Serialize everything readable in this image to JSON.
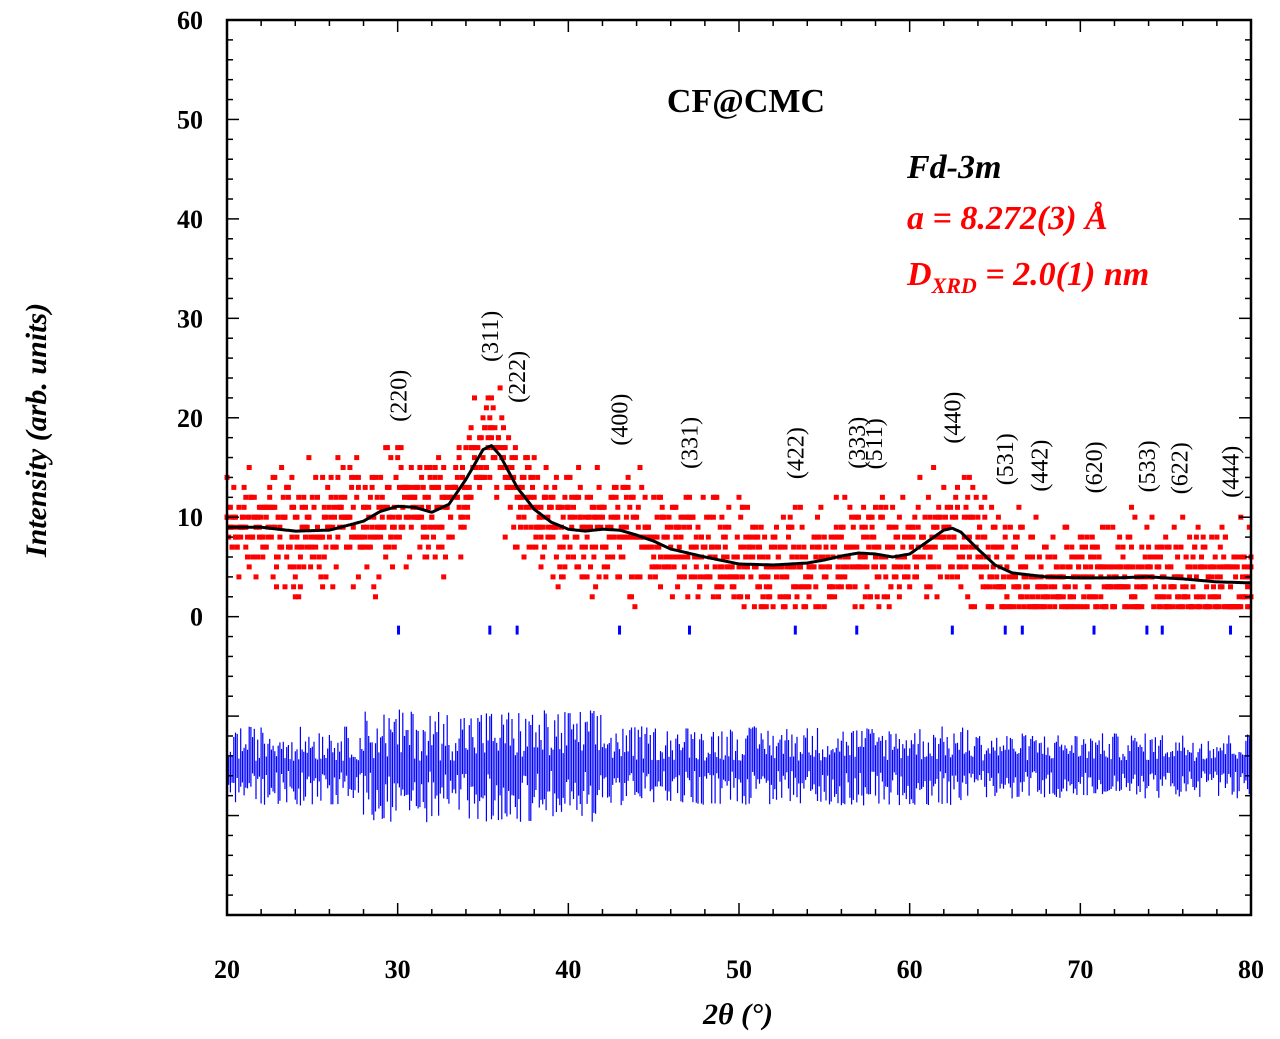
{
  "colors": {
    "observed": "#ff0000",
    "calculated": "#000000",
    "bragg": "#0000ff",
    "difference": "#0000ff",
    "annotation_red": "#ff0000",
    "annotation_black": "#000000"
  },
  "chart_data": {
    "type": "scatter",
    "title": "CF@CMC",
    "xlabel": "2θ (°)",
    "ylabel": "Intensity (arb. units)",
    "xlim": [
      20,
      80
    ],
    "ylim": [
      -30,
      60
    ],
    "x_ticks": [
      "20",
      "30",
      "40",
      "50",
      "60",
      "70",
      "80"
    ],
    "y_ticks": [
      "0",
      "10",
      "20",
      "30",
      "40",
      "50",
      "60"
    ],
    "annotations": {
      "space_group": "Fd-3m",
      "lattice_param": "a = 8.272(3) Å",
      "size_prefix": "D",
      "size_subscript": "XRD",
      "size_value": " = 2.0(1) nm"
    },
    "series": [
      {
        "name": "Observed",
        "style": "square-markers",
        "note": "noisy scattered points following the calculated curve with ±5 spread"
      },
      {
        "name": "Calculated",
        "style": "line",
        "x": [
          20,
          22,
          24,
          26,
          28,
          29,
          30,
          31,
          32,
          33,
          34,
          35,
          35.5,
          36,
          37,
          38,
          39,
          40,
          41,
          42,
          43,
          44,
          45,
          46,
          48,
          50,
          52,
          54,
          55,
          56,
          57,
          58,
          59,
          60,
          61,
          62,
          62.5,
          63,
          64,
          65,
          66,
          68,
          70,
          72,
          74,
          76,
          78,
          80
        ],
        "y": [
          9,
          9,
          8.6,
          8.7,
          9.6,
          10.6,
          11.1,
          11,
          10.5,
          11.3,
          13.8,
          16.8,
          17.2,
          16.2,
          13,
          10.8,
          9.5,
          8.8,
          8.6,
          8.8,
          8.7,
          8.2,
          7.6,
          6.8,
          6,
          5.3,
          5.2,
          5.4,
          5.7,
          6.1,
          6.4,
          6.3,
          6,
          6.3,
          7.5,
          8.7,
          8.9,
          8.5,
          6.8,
          5.2,
          4.4,
          4,
          3.9,
          3.9,
          4,
          3.8,
          3.5,
          3.4
        ]
      },
      {
        "name": "Difference",
        "style": "vertical-lines",
        "baseline": -15,
        "note": "residual noise, amplitude ~±5, larger near 30–40"
      }
    ],
    "bragg_positions": [
      30.05,
      35.4,
      37.0,
      43.0,
      47.1,
      53.3,
      56.9,
      62.5,
      65.6,
      66.6,
      70.8,
      73.9,
      74.8,
      78.8
    ],
    "reflections": [
      {
        "hkl": "(220)",
        "x": 30.05
      },
      {
        "hkl": "(311)",
        "x": 35.4
      },
      {
        "hkl": "(222)",
        "x": 37.0
      },
      {
        "hkl": "(400)",
        "x": 43.0
      },
      {
        "hkl": "(331)",
        "x": 47.1
      },
      {
        "hkl": "(422)",
        "x": 53.3
      },
      {
        "hkl": "(333)",
        "x": 56.9
      },
      {
        "hkl": "(511)",
        "x": 57.9
      },
      {
        "hkl": "(440)",
        "x": 62.5
      },
      {
        "hkl": "(531)",
        "x": 65.6
      },
      {
        "hkl": "(442)",
        "x": 67.6
      },
      {
        "hkl": "(620)",
        "x": 70.8
      },
      {
        "hkl": "(533)",
        "x": 73.9
      },
      {
        "hkl": "(622)",
        "x": 75.8
      },
      {
        "hkl": "(444)",
        "x": 78.8
      }
    ]
  }
}
